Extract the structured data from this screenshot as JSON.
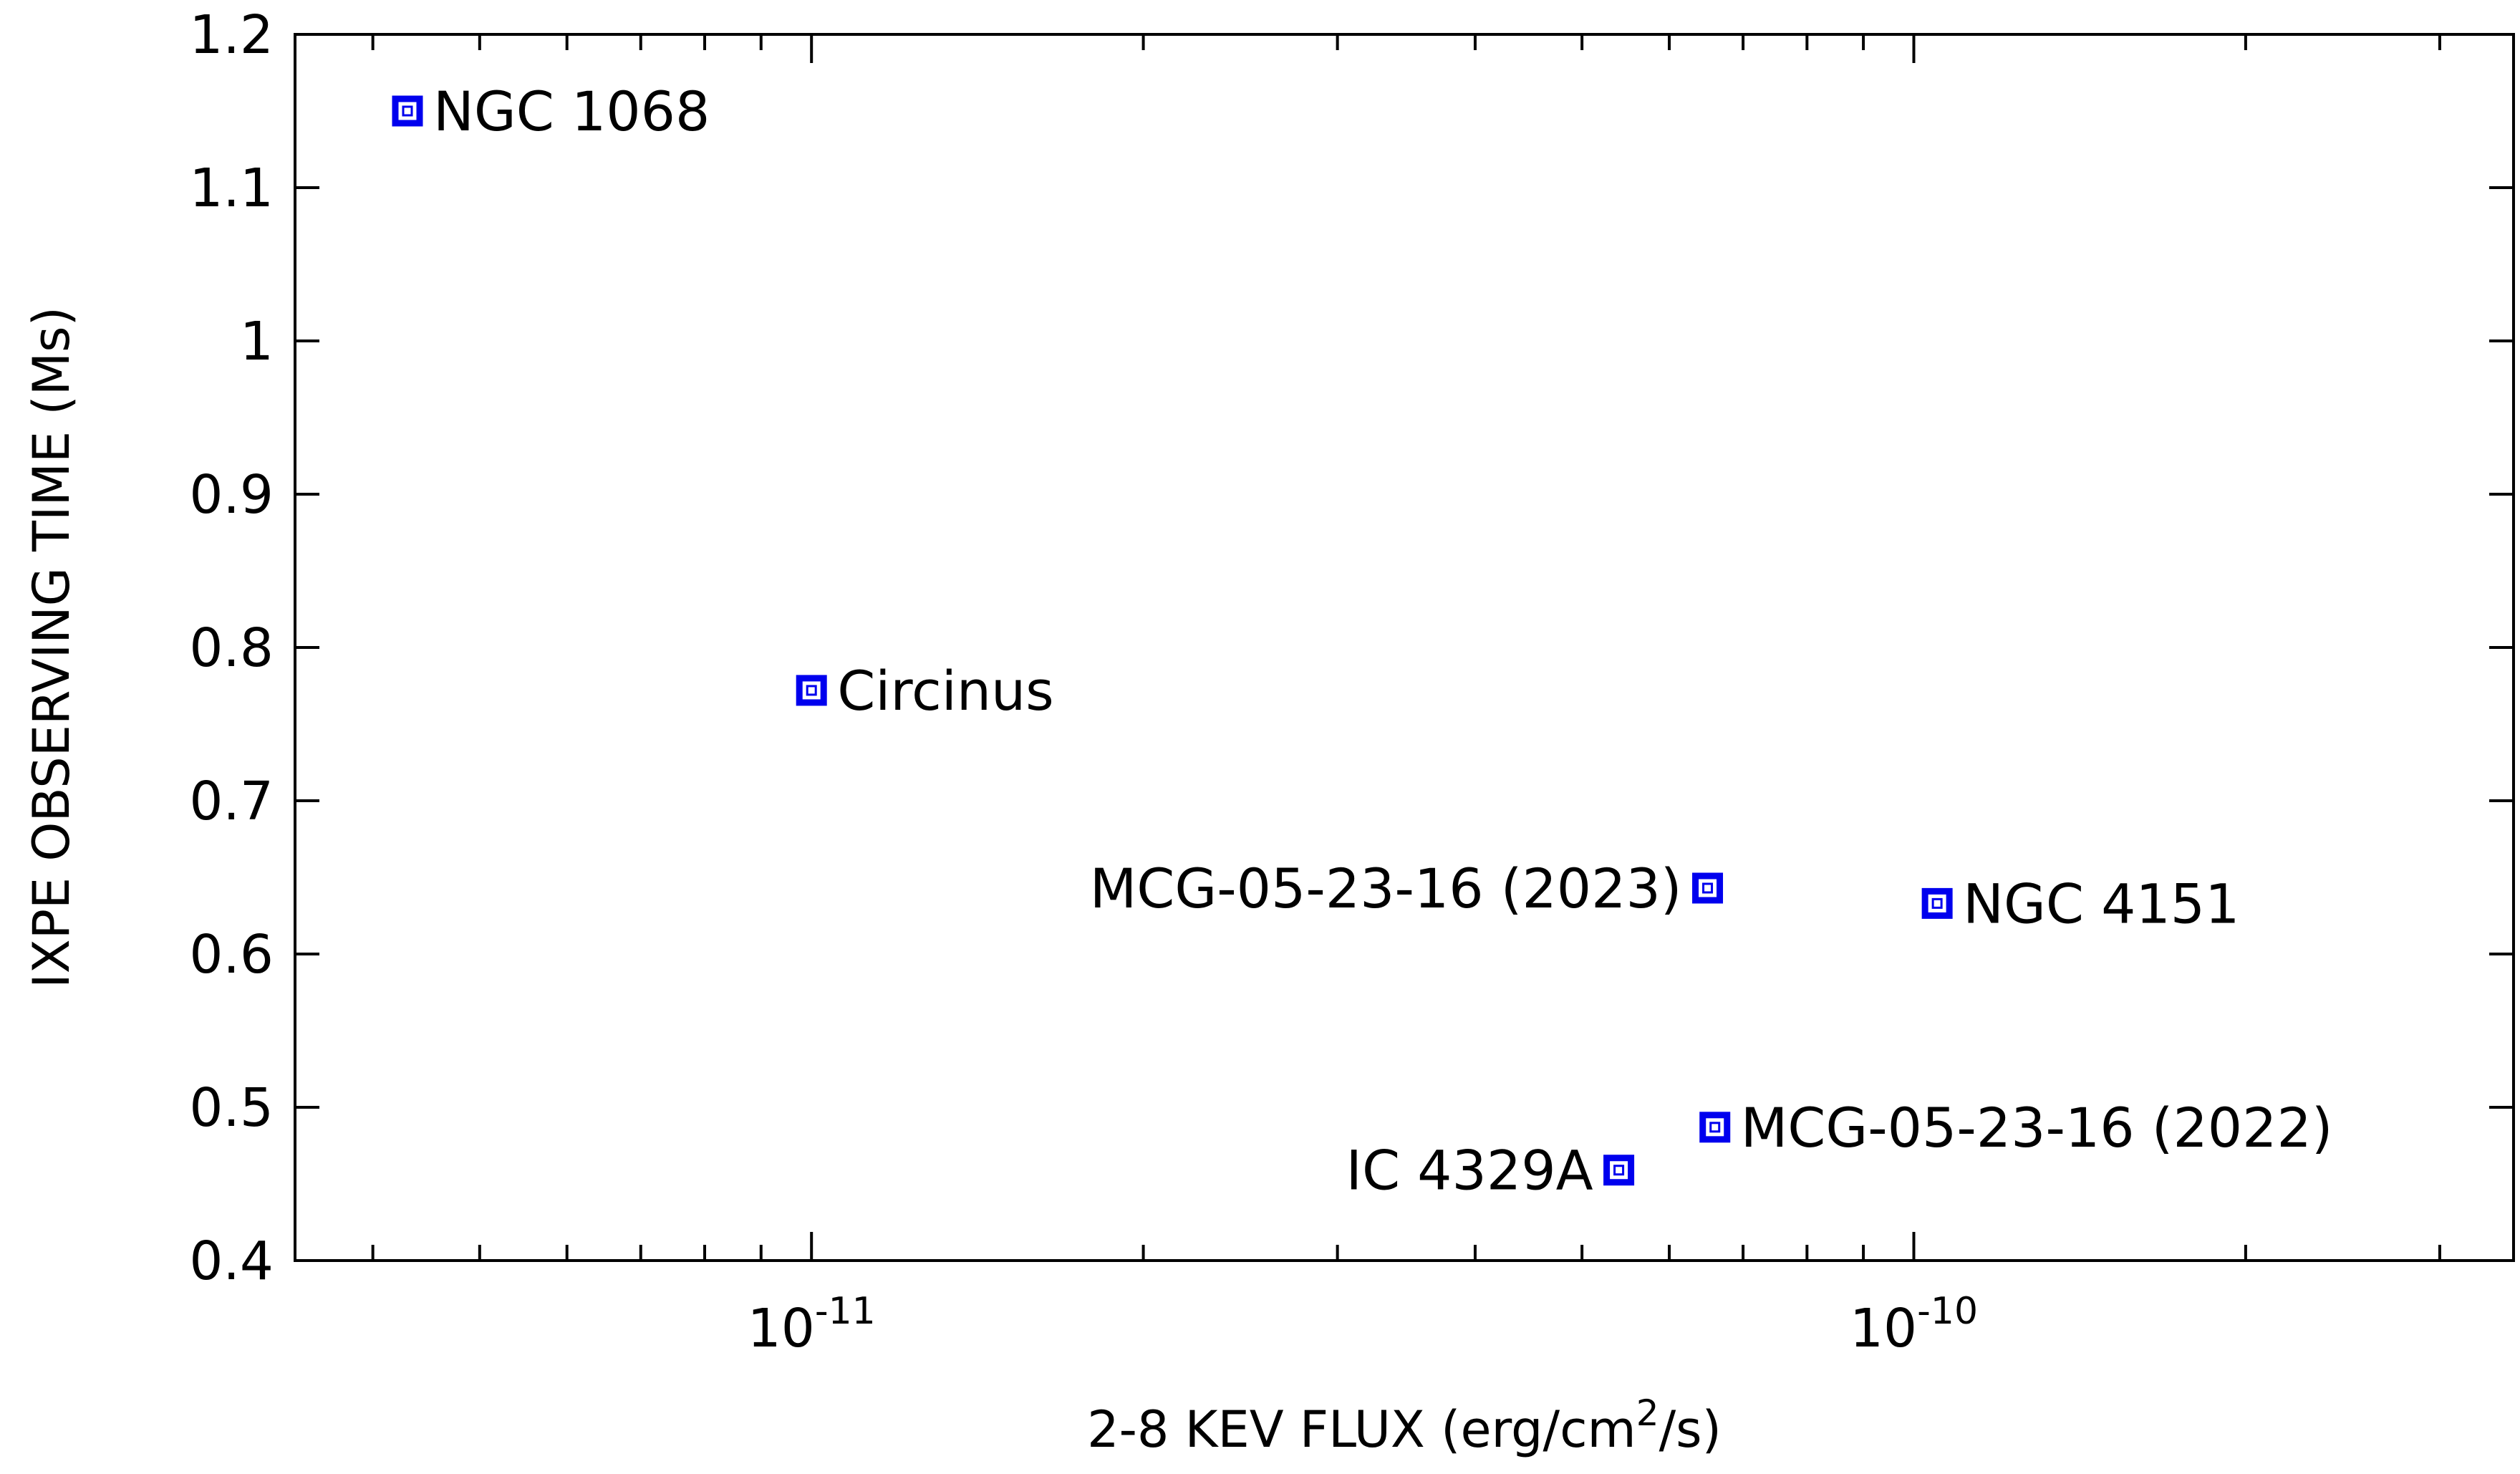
{
  "chart_data": {
    "type": "scatter",
    "title": "",
    "xlabel": "2-8 KEV FLUX (erg/cm",
    "xlabel_sup": "2",
    "xlabel_suffix": "/s)",
    "ylabel": "IXPE OBSERVING TIME (Ms)",
    "x_scale": "log",
    "xlim": [
      3.4e-12,
      3.5e-10
    ],
    "ylim": [
      0.4,
      1.2
    ],
    "x_ticks": [
      {
        "value": 1e-11,
        "base": "10",
        "exp": "-11"
      },
      {
        "value": 1e-10,
        "base": "10",
        "exp": "-10"
      }
    ],
    "y_ticks": [
      "0.4",
      "0.5",
      "0.6",
      "0.7",
      "0.8",
      "0.9",
      "1",
      "1.1",
      "1.2"
    ],
    "grid": false,
    "marker": "open-square",
    "color": "#0000ee",
    "points": [
      {
        "label": "NGC 1068",
        "x": 4.3e-12,
        "y": 1.15,
        "label_side": "right"
      },
      {
        "label": "Circinus",
        "x": 1e-11,
        "y": 0.772,
        "label_side": "right"
      },
      {
        "label": "MCG-05-23-16 (2023)",
        "x": 6.5e-11,
        "y": 0.643,
        "label_side": "left"
      },
      {
        "label": "NGC 4151",
        "x": 1.05e-10,
        "y": 0.633,
        "label_side": "right"
      },
      {
        "label": "MCG-05-23-16 (2022)",
        "x": 6.6e-11,
        "y": 0.487,
        "label_side": "right"
      },
      {
        "label": "IC 4329A",
        "x": 5.4e-11,
        "y": 0.459,
        "label_side": "left"
      }
    ]
  }
}
